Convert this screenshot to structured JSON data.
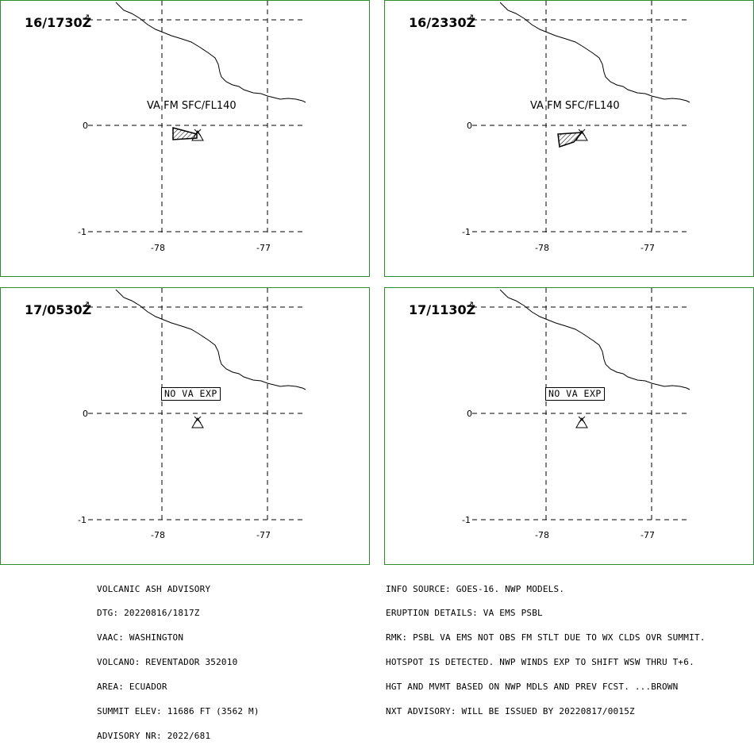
{
  "panels": [
    {
      "time": "16/1730Z",
      "label": "VA FM SFC/FL140",
      "no_va": false
    },
    {
      "time": "16/2330Z",
      "label": "VA FM SFC/FL140",
      "no_va": false
    },
    {
      "time": "17/0530Z",
      "label": "NO VA EXP",
      "no_va": true
    },
    {
      "time": "17/1130Z",
      "label": "NO VA EXP",
      "no_va": true
    }
  ],
  "axis": {
    "lat_labels": [
      "0",
      "-1"
    ],
    "lon_labels": [
      "-78",
      "-77"
    ]
  },
  "advisory_left": [
    "VOLCANIC ASH ADVISORY",
    "DTG: 20220816/1817Z",
    "VAAC: WASHINGTON",
    "VOLCANO: REVENTADOR 352010",
    "AREA: ECUADOR",
    "SUMMIT ELEV: 11686 FT (3562 M)",
    "ADVISORY NR: 2022/681"
  ],
  "advisory_right": [
    "INFO SOURCE: GOES-16. NWP MODELS.",
    "ERUPTION DETAILS: VA EMS PSBL",
    "RMK: PSBL VA EMS NOT OBS FM STLT DUE TO WX CLDS OVR SUMMIT.",
    "HOTSPOT IS DETECTED. NWP WINDS EXP TO SHIFT WSW THRU T+6.",
    "HGT AND MVMT BASED ON NWP MDLS AND PREV FCST. ...BROWN",
    "NXT ADVISORY: WILL BE ISSUED BY 20220817/0015Z"
  ],
  "colors": {
    "panel_border": "#2e8b2e",
    "ink": "#000000"
  }
}
